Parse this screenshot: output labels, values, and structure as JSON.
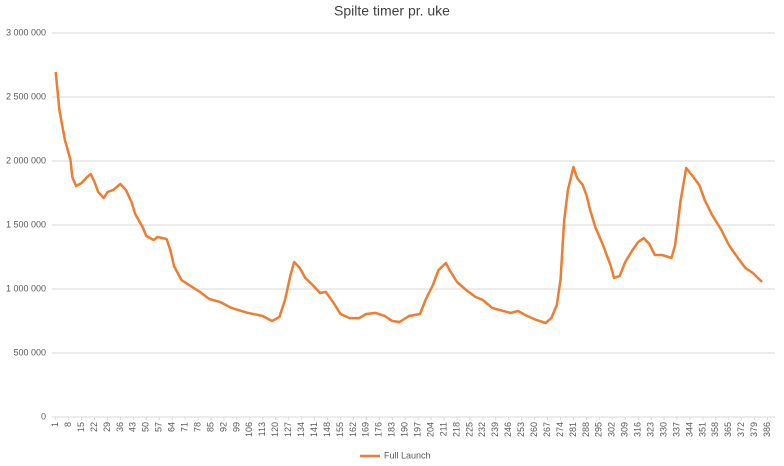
{
  "chart_data": {
    "type": "line",
    "title": "Spilte timer pr. uke",
    "x": [
      1,
      3,
      6,
      9,
      10,
      12,
      15,
      18,
      20,
      22,
      24,
      27,
      29,
      32,
      36,
      39,
      42,
      44,
      48,
      50,
      54,
      56,
      61,
      63,
      65,
      69,
      74,
      79,
      84,
      90,
      96,
      105,
      113,
      118,
      122,
      125,
      128,
      130,
      133,
      136,
      140,
      144,
      147,
      151,
      155,
      160,
      165,
      169,
      174,
      179,
      183,
      187,
      192,
      195,
      198,
      201,
      205,
      208,
      212,
      214,
      218,
      223,
      228,
      232,
      237,
      241,
      247,
      251,
      256,
      261,
      266,
      269,
      272,
      274,
      276,
      278,
      281,
      283,
      286,
      288,
      290,
      293,
      297,
      299,
      301,
      303,
      306,
      309,
      313,
      316,
      319,
      322,
      325,
      329,
      334,
      336,
      339,
      342,
      345,
      349,
      352,
      356,
      361,
      365,
      370,
      374,
      378,
      383
    ],
    "series": [
      {
        "name": "Full Launch",
        "color": "#ed7d31",
        "values": [
          2695000,
          2398000,
          2164000,
          2008000,
          1875000,
          1805000,
          1828000,
          1875000,
          1898000,
          1836000,
          1758000,
          1711000,
          1758000,
          1773000,
          1820000,
          1773000,
          1680000,
          1586000,
          1484000,
          1414000,
          1383000,
          1406000,
          1391000,
          1305000,
          1180000,
          1070000,
          1023000,
          977000,
          922000,
          898000,
          852000,
          813000,
          789000,
          750000,
          781000,
          914000,
          1109000,
          1211000,
          1164000,
          1086000,
          1031000,
          969000,
          977000,
          898000,
          805000,
          773000,
          773000,
          805000,
          813000,
          789000,
          750000,
          742000,
          789000,
          797000,
          805000,
          914000,
          1031000,
          1148000,
          1203000,
          1148000,
          1055000,
          992000,
          938000,
          914000,
          852000,
          836000,
          813000,
          828000,
          789000,
          758000,
          734000,
          773000,
          875000,
          1070000,
          1539000,
          1773000,
          1953000,
          1867000,
          1813000,
          1734000,
          1617000,
          1477000,
          1344000,
          1266000,
          1188000,
          1086000,
          1102000,
          1211000,
          1305000,
          1367000,
          1398000,
          1352000,
          1266000,
          1266000,
          1242000,
          1344000,
          1695000,
          1945000,
          1891000,
          1813000,
          1695000,
          1578000,
          1461000,
          1344000,
          1242000,
          1164000,
          1125000,
          1055000
        ]
      }
    ],
    "xlim": [
      -1,
      390
    ],
    "xticks": [
      1,
      8,
      15,
      22,
      29,
      36,
      43,
      50,
      57,
      64,
      71,
      78,
      85,
      92,
      99,
      106,
      113,
      120,
      127,
      134,
      141,
      148,
      155,
      162,
      169,
      176,
      183,
      190,
      197,
      204,
      211,
      218,
      225,
      232,
      239,
      246,
      253,
      260,
      267,
      274,
      281,
      288,
      295,
      302,
      309,
      316,
      323,
      330,
      337,
      344,
      351,
      358,
      365,
      372,
      379,
      386
    ],
    "ylim": [
      0,
      3000000
    ],
    "yticks": [
      0,
      {
        "value": 500000,
        "label": "500 000"
      },
      {
        "value": 1000000,
        "label": "1 000 000"
      },
      {
        "value": 1500000,
        "label": "1 500 000"
      },
      {
        "value": 2000000,
        "label": "2 000 000"
      },
      {
        "value": 2500000,
        "label": "2 500 000"
      },
      {
        "value": 3000000,
        "label": "3 000 000"
      }
    ],
    "grid": true,
    "legend": "bottom"
  }
}
